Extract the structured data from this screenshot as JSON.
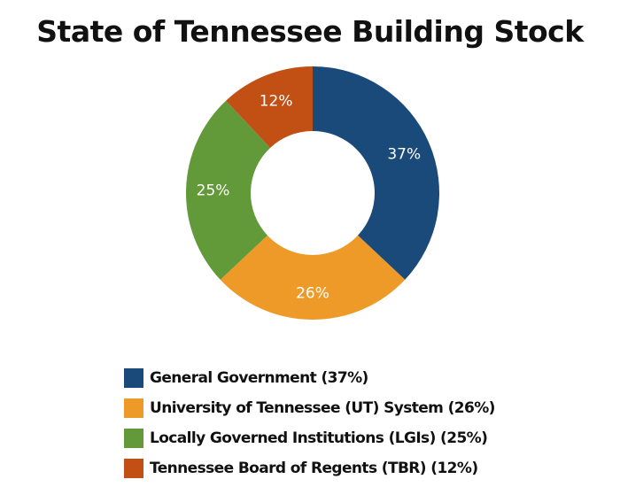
{
  "chart_data": {
    "type": "pie",
    "variant": "donut",
    "title": "State of Tennessee Building Stock",
    "categories": [
      "General Government",
      "University of Tennessee (UT) System",
      "Locally Governed Institutions (LGIs)",
      "Tennessee Board of Regents (TBR)"
    ],
    "values": [
      37,
      26,
      25,
      12
    ],
    "unit": "%",
    "colors": [
      "#1a4a7a",
      "#ee9a28",
      "#629a3a",
      "#c24f14"
    ],
    "slice_labels": [
      "37%",
      "26%",
      "25%",
      "12%"
    ],
    "legend_position": "bottom",
    "legend_labels": [
      "General Government (37%)",
      "University of Tennessee (UT) System (26%)",
      "Locally Governed Institutions (LGIs) (25%)",
      "Tennessee Board of Regents (TBR) (12%)"
    ]
  }
}
